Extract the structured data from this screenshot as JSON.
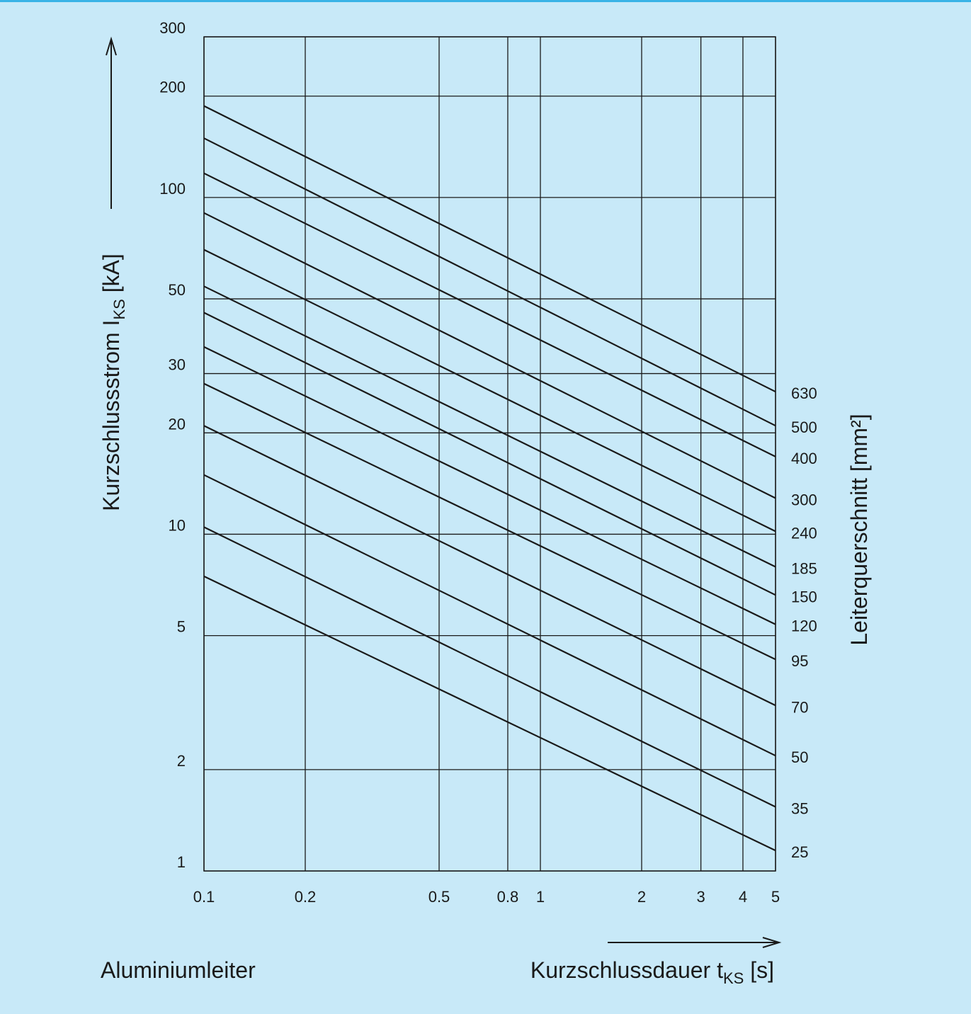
{
  "chart_data": {
    "type": "line",
    "xscale": "log",
    "yscale": "log",
    "xlim": [
      0.1,
      5
    ],
    "ylim": [
      1,
      300
    ],
    "grid": true,
    "x_ticks": [
      "0.1",
      "0.2",
      "0.5",
      "0.8",
      "1",
      "2",
      "3",
      "4",
      "5"
    ],
    "x_tick_values": [
      0.1,
      0.2,
      0.5,
      0.8,
      1,
      2,
      3,
      4,
      5
    ],
    "y_ticks": [
      "1",
      "2",
      "5",
      "10",
      "20",
      "30",
      "50",
      "100",
      "200",
      "300"
    ],
    "y_tick_values": [
      1,
      2,
      5,
      10,
      20,
      30,
      50,
      100,
      200,
      300
    ],
    "ylabel": {
      "main": "Kurzschlussstrom I",
      "sub": "KS",
      "unit": " [kA]"
    },
    "xlabel": {
      "main": "Kurzschlussdauer t",
      "sub": "KS",
      "unit": " [s]"
    },
    "right_label": "Leiterquerschnitt [mm²]",
    "note": "Aluminiumleiter",
    "series": [
      {
        "name": "630",
        "x": [
          0.1,
          5
        ],
        "y": [
          187,
          26.5
        ]
      },
      {
        "name": "500",
        "x": [
          0.1,
          5
        ],
        "y": [
          150,
          21
        ]
      },
      {
        "name": "400",
        "x": [
          0.1,
          5
        ],
        "y": [
          118,
          17
        ]
      },
      {
        "name": "300",
        "x": [
          0.1,
          5
        ],
        "y": [
          90,
          12.8
        ]
      },
      {
        "name": "240",
        "x": [
          0.1,
          5
        ],
        "y": [
          70,
          10.2
        ]
      },
      {
        "name": "185",
        "x": [
          0.1,
          5
        ],
        "y": [
          54.5,
          8
        ]
      },
      {
        "name": "150",
        "x": [
          0.1,
          5
        ],
        "y": [
          45.5,
          6.6
        ]
      },
      {
        "name": "120",
        "x": [
          0.1,
          5
        ],
        "y": [
          36,
          5.4
        ]
      },
      {
        "name": "95",
        "x": [
          0.1,
          5
        ],
        "y": [
          28,
          4.25
        ]
      },
      {
        "name": "70",
        "x": [
          0.1,
          5
        ],
        "y": [
          21,
          3.1
        ]
      },
      {
        "name": "50",
        "x": [
          0.1,
          5
        ],
        "y": [
          15,
          2.2
        ]
      },
      {
        "name": "35",
        "x": [
          0.1,
          5
        ],
        "y": [
          10.5,
          1.55
        ]
      },
      {
        "name": "25",
        "x": [
          0.1,
          5
        ],
        "y": [
          7.5,
          1.15
        ]
      }
    ]
  },
  "colors": {
    "background": "#c8e9f8",
    "top_rule": "#3ab3e6",
    "ink": "#1a1a1a"
  }
}
